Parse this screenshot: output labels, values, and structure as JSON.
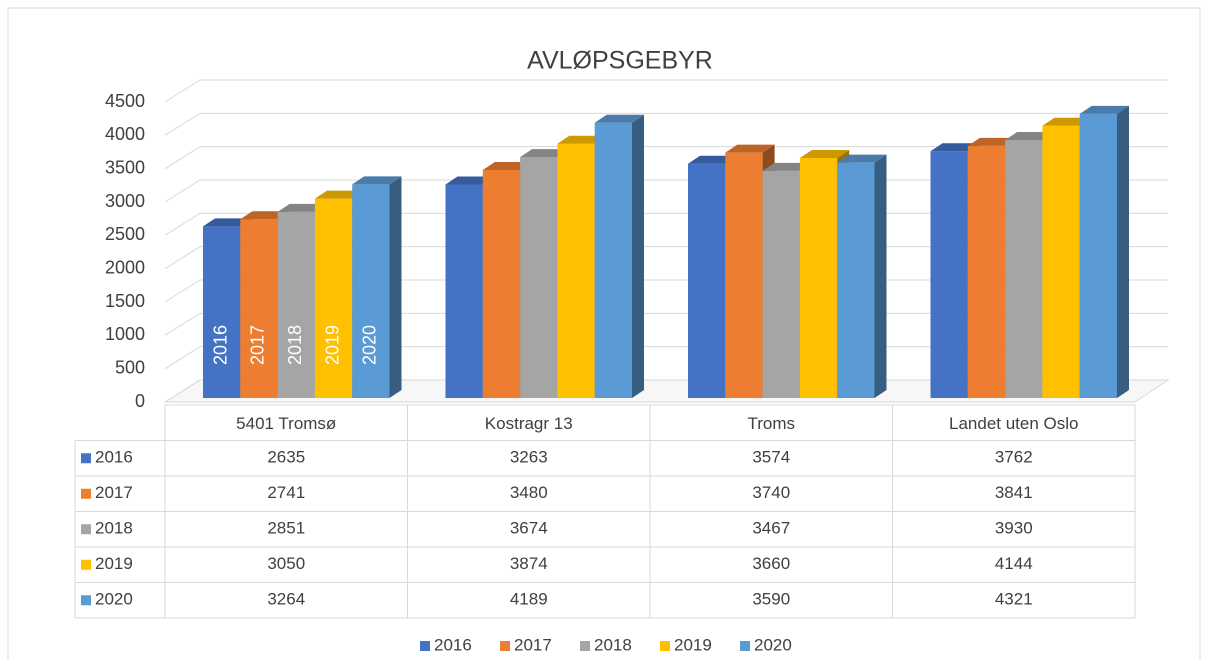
{
  "chart_data": {
    "type": "bar",
    "title": "AVLØPSGEBYR",
    "categories": [
      "5401 Tromsø",
      "Kostragr 13",
      "Troms",
      "Landet uten Oslo"
    ],
    "series": [
      {
        "name": "2016",
        "color": "#4472c4",
        "values": [
          2635,
          3263,
          3574,
          3762
        ]
      },
      {
        "name": "2017",
        "color": "#ed7d31",
        "values": [
          2741,
          3480,
          3740,
          3841
        ]
      },
      {
        "name": "2018",
        "color": "#a5a5a5",
        "values": [
          2851,
          3674,
          3467,
          3930
        ]
      },
      {
        "name": "2019",
        "color": "#ffc000",
        "values": [
          3050,
          3874,
          3660,
          4144
        ]
      },
      {
        "name": "2020",
        "color": "#5b9bd5",
        "values": [
          3264,
          4189,
          3590,
          4321
        ]
      }
    ],
    "ylim": [
      0,
      4500
    ],
    "yticks": [
      0,
      500,
      1000,
      1500,
      2000,
      2500,
      3000,
      3500,
      4000,
      4500
    ],
    "grid": true,
    "legend": "bottom"
  }
}
